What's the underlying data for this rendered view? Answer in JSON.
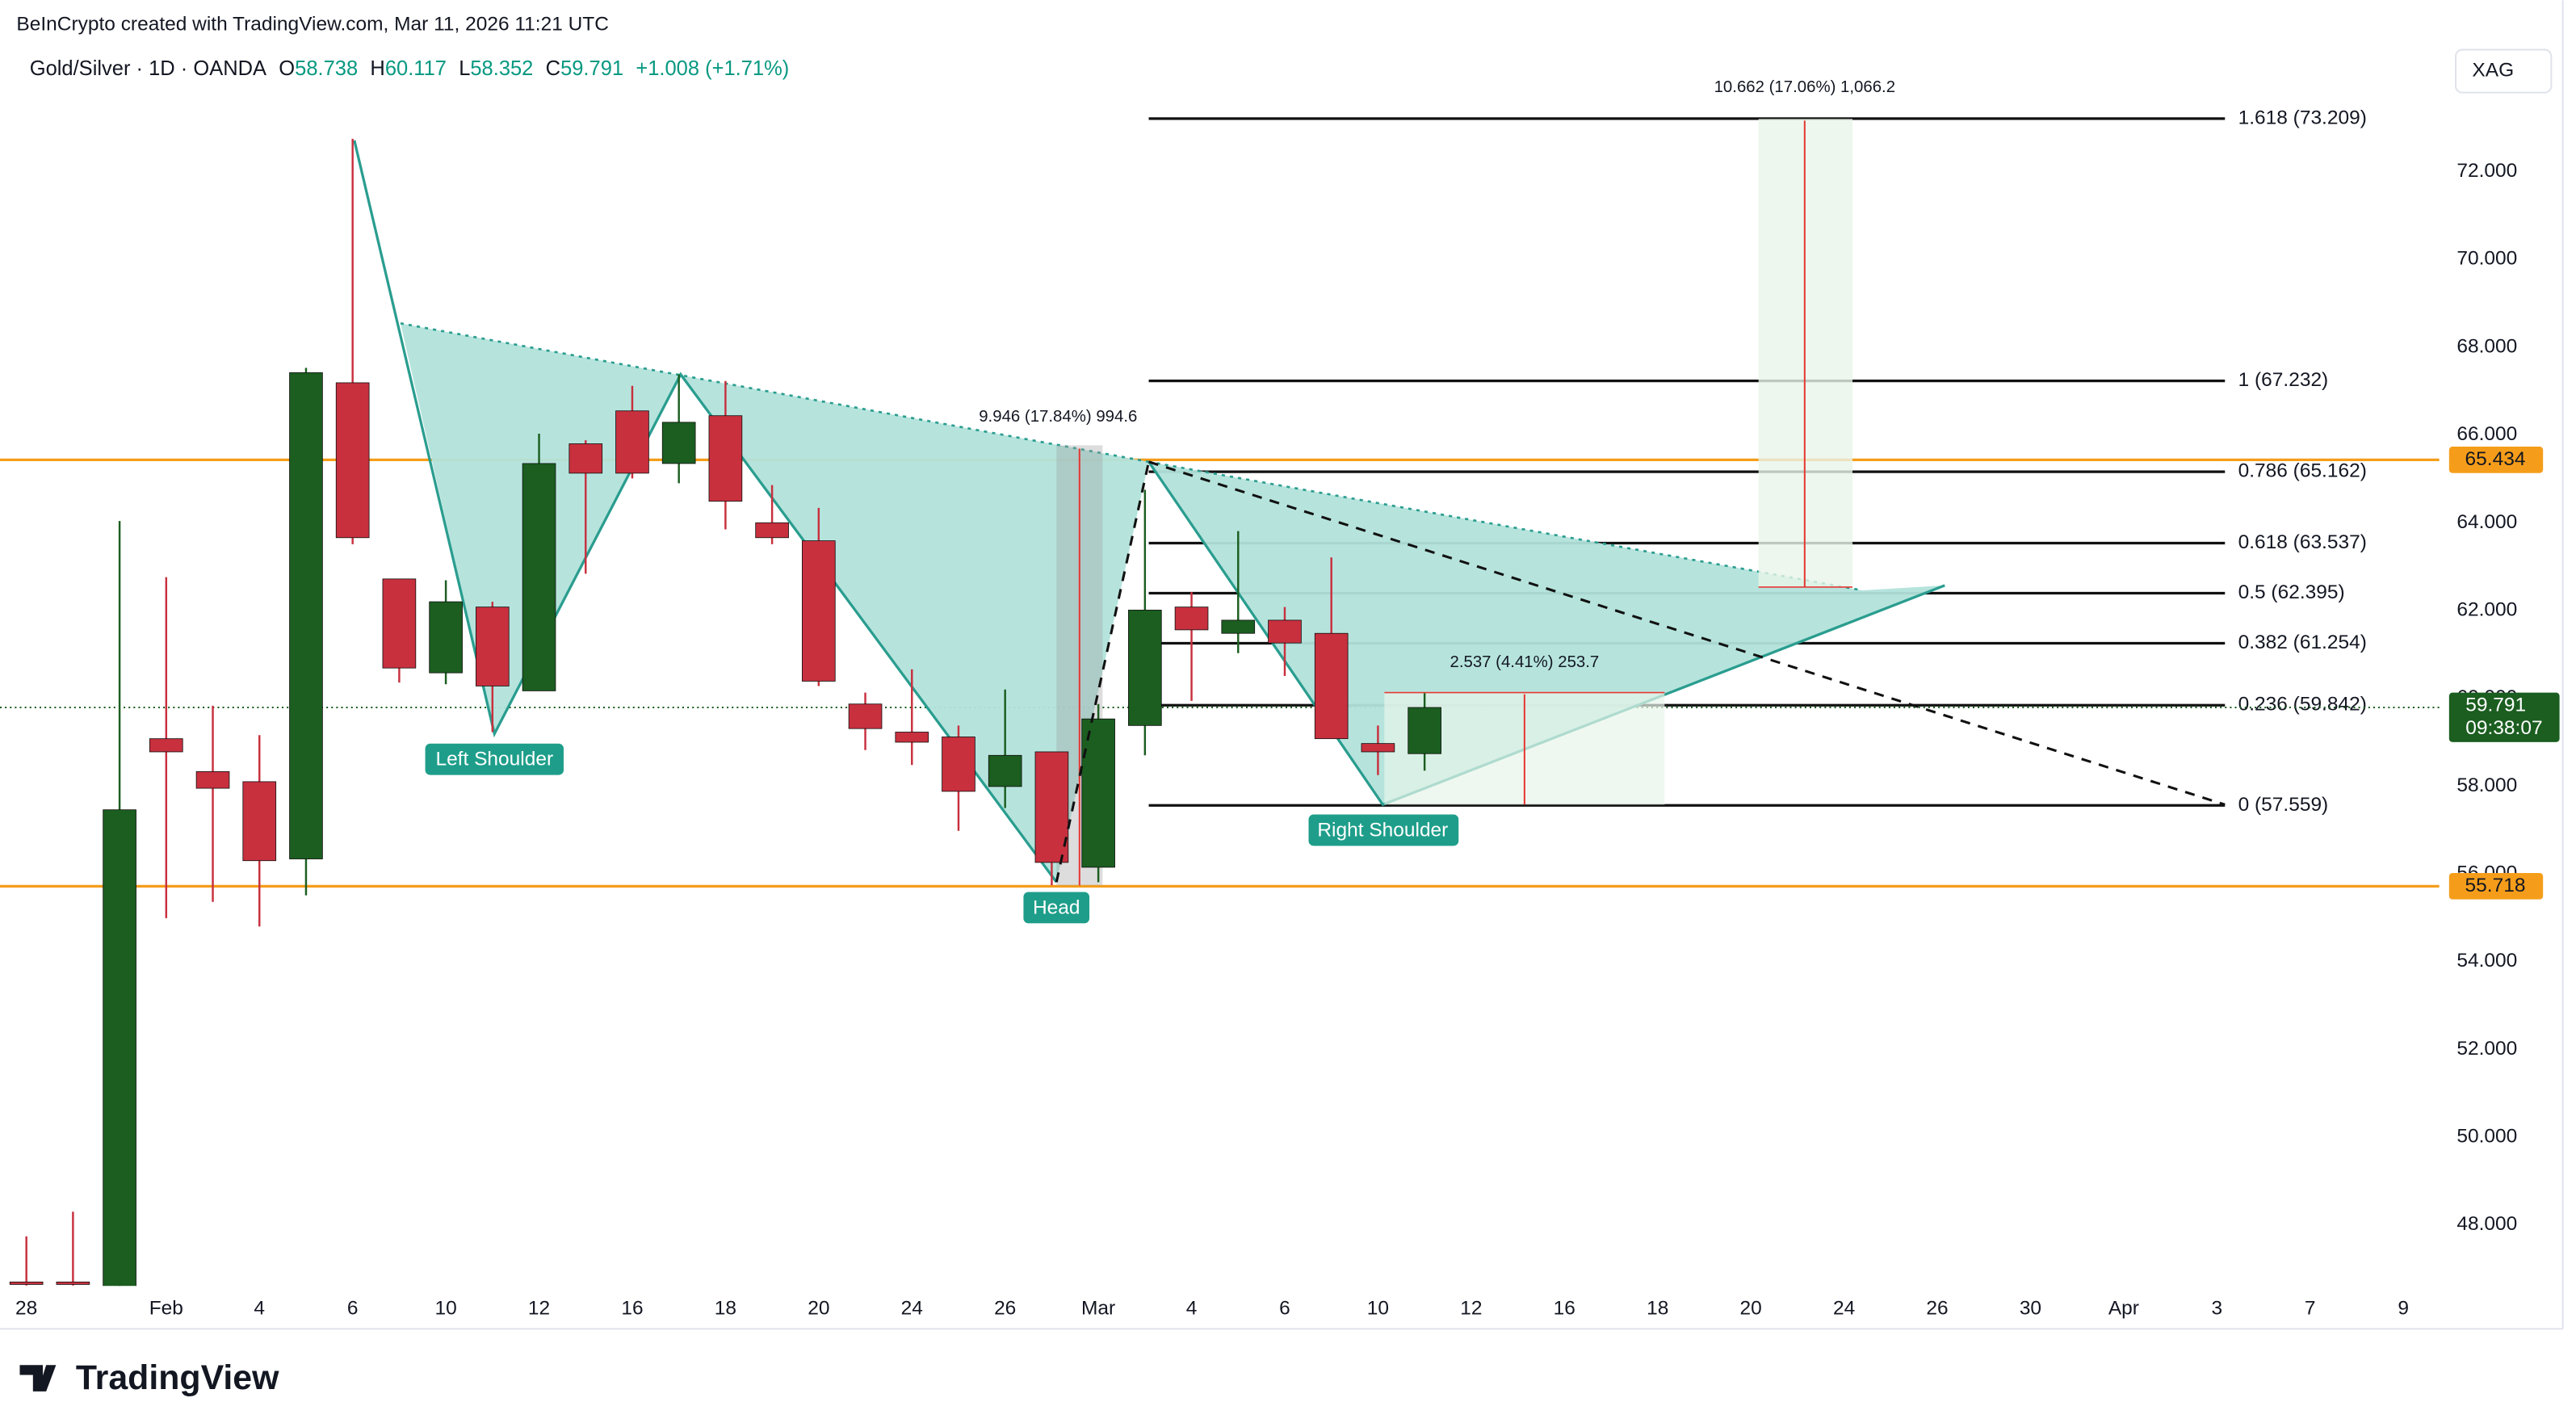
{
  "watermark": "BeInCrypto created with TradingView.com, Mar 11, 2026 11:21 UTC",
  "header": {
    "symbol": "Gold/Silver · 1D · OANDA",
    "items": [
      {
        "label": "O",
        "value": "58.738"
      },
      {
        "label": "H",
        "value": "60.117"
      },
      {
        "label": "L",
        "value": "58.352"
      },
      {
        "label": "C",
        "value": "59.791"
      }
    ],
    "change": "+1.008 (+1.71%)"
  },
  "currency": "XAG",
  "logo": "TradingView",
  "chart_data": {
    "type": "candlestick",
    "x": [
      0,
      1,
      2,
      3,
      4,
      5,
      6,
      7,
      8,
      9,
      10,
      11,
      12,
      13,
      14,
      15,
      16,
      17,
      18,
      19,
      20,
      21,
      22,
      23,
      24,
      25,
      26,
      27,
      28,
      29,
      30
    ],
    "open": [
      46.7,
      46.7,
      46.0,
      59.08,
      58.33,
      58.1,
      56.34,
      67.19,
      62.72,
      60.58,
      62.08,
      60.17,
      65.8,
      66.55,
      65.35,
      66.44,
      64.0,
      63.59,
      59.87,
      59.23,
      59.12,
      57.99,
      58.78,
      56.15,
      59.38,
      62.08,
      61.48,
      61.78,
      61.48,
      58.97,
      58.738
    ],
    "high": [
      47.74,
      48.3,
      64.04,
      62.76,
      59.83,
      59.16,
      67.53,
      72.75,
      62.72,
      62.69,
      62.2,
      66.03,
      65.88,
      67.12,
      67.38,
      67.23,
      64.86,
      64.34,
      60.13,
      60.66,
      59.38,
      60.2,
      58.78,
      59.87,
      64.75,
      62.42,
      63.81,
      62.08,
      63.21,
      59.38,
      60.117
    ],
    "low": [
      46.62,
      46.62,
      45.5,
      54.99,
      55.36,
      54.8,
      55.51,
      63.51,
      60.36,
      60.32,
      59.23,
      60.17,
      62.84,
      65.01,
      64.9,
      63.85,
      63.51,
      60.28,
      58.82,
      58.48,
      56.98,
      57.5,
      55.74,
      55.81,
      58.7,
      59.94,
      61.03,
      60.51,
      59.08,
      58.25,
      58.352
    ],
    "close": [
      46.65,
      46.65,
      57.46,
      58.78,
      57.95,
      56.3,
      67.42,
      63.66,
      60.69,
      62.2,
      60.28,
      65.35,
      65.13,
      65.13,
      66.29,
      64.49,
      63.66,
      60.39,
      59.31,
      59.0,
      57.88,
      58.7,
      56.26,
      59.53,
      62.01,
      61.56,
      61.78,
      61.26,
      59.08,
      58.78,
      59.791
    ],
    "up_color": "#1b5e20",
    "down_color": "#c8303e",
    "xlim": [
      -0.566,
      51.77
    ],
    "ylim": [
      46.61,
      75.906
    ],
    "xticks": [
      {
        "value": 0,
        "label": "28"
      },
      {
        "value": 3,
        "label": "Feb"
      },
      {
        "value": 5,
        "label": "4"
      },
      {
        "value": 7,
        "label": "6"
      },
      {
        "value": 9,
        "label": "10"
      },
      {
        "value": 11,
        "label": "12"
      },
      {
        "value": 13,
        "label": "16"
      },
      {
        "value": 15,
        "label": "18"
      },
      {
        "value": 17,
        "label": "20"
      },
      {
        "value": 19,
        "label": "24"
      },
      {
        "value": 21,
        "label": "26"
      },
      {
        "value": 23,
        "label": "Mar"
      },
      {
        "value": 25,
        "label": "4"
      },
      {
        "value": 27,
        "label": "6"
      },
      {
        "value": 29,
        "label": "10"
      },
      {
        "value": 31,
        "label": "12"
      },
      {
        "value": 33,
        "label": "16"
      },
      {
        "value": 35,
        "label": "18"
      },
      {
        "value": 37,
        "label": "20"
      },
      {
        "value": 39,
        "label": "24"
      },
      {
        "value": 41,
        "label": "26"
      },
      {
        "value": 43,
        "label": "30"
      },
      {
        "value": 45,
        "label": "Apr"
      },
      {
        "value": 47,
        "label": "3"
      },
      {
        "value": 49,
        "label": "7"
      },
      {
        "value": 51,
        "label": "9"
      }
    ],
    "yticks": [
      {
        "value": 48,
        "label": "48.000"
      },
      {
        "value": 50,
        "label": "50.000"
      },
      {
        "value": 52,
        "label": "52.000"
      },
      {
        "value": 54,
        "label": "54.000"
      },
      {
        "value": 56,
        "label": "56.000"
      },
      {
        "value": 58,
        "label": "58.000"
      },
      {
        "value": 60,
        "label": "60.000"
      },
      {
        "value": 62,
        "label": "62.000"
      },
      {
        "value": 64,
        "label": "64.000"
      },
      {
        "value": 66,
        "label": "66.000"
      },
      {
        "value": 68,
        "label": "68.000"
      },
      {
        "value": 70,
        "label": "70.000"
      },
      {
        "value": 72,
        "label": "72.000"
      }
    ],
    "hlines": [
      {
        "value": 65.434,
        "color": "#f59d1a"
      },
      {
        "value": 55.718,
        "color": "#f59d1a"
      }
    ],
    "fib": [
      {
        "value": 73.209,
        "label": "1.618 (73.209)"
      },
      {
        "value": 67.232,
        "label": "1 (67.232)"
      },
      {
        "value": 65.162,
        "label": "0.786 (65.162)"
      },
      {
        "value": 63.537,
        "label": "0.618 (63.537)"
      },
      {
        "value": 62.395,
        "label": "0.5 (62.395)"
      },
      {
        "value": 61.254,
        "label": "0.382 (61.254)"
      },
      {
        "value": 59.842,
        "label": "0.236 (59.842)"
      },
      {
        "value": 57.559,
        "label": "0 (57.559)"
      }
    ],
    "last_price": {
      "value": 59.791,
      "countdown": "09:38:07",
      "color": "#1b5e20"
    },
    "annotations": [
      "9.946 (17.84%) 994.6",
      "2.537 (4.41%) 253.7",
      "10.662 (17.06%) 1,066.2"
    ],
    "pattern_labels": [
      "Left Shoulder",
      "Head",
      "Right Shoulder"
    ]
  }
}
